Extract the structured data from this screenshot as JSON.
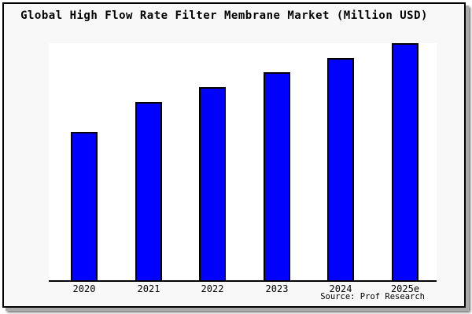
{
  "chart_data": {
    "type": "bar",
    "title": "Global High Flow Rate Filter Membrane Market (Million USD)",
    "categories": [
      "2020",
      "2021",
      "2022",
      "2023",
      "2024",
      "2025e"
    ],
    "values": [
      62.6,
      75.2,
      81.5,
      87.7,
      93.7,
      100
    ],
    "values_note": "y-axis has no tick labels; values estimated relative to tallest bar (2025e = 100)",
    "xlabel": "",
    "ylabel": "",
    "ylim": [
      0,
      100
    ],
    "grid": false,
    "legend": false,
    "source": "Source: Prof Research",
    "bar_color": "#0000ff",
    "bar_border_color": "#000000",
    "figure_background": "#f8f8f8",
    "plot_background": "#ffffff",
    "frame_border_color": "#000000"
  }
}
